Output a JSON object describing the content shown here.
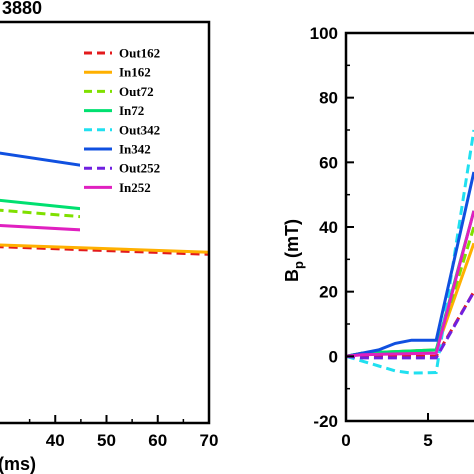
{
  "chart_data": [
    {
      "type": "line",
      "title": "3880",
      "xlabel": "(ms)",
      "ylabel": "",
      "xlim": [
        20,
        70
      ],
      "xticks": [
        "40",
        "50",
        "60",
        "70"
      ],
      "grid": false,
      "legend_position": "top-right",
      "series": [
        {
          "name": "Out162",
          "color": "#e31a1c",
          "dash": true,
          "x": [
            20,
            70
          ],
          "y": [
            0.0,
            -1.7
          ]
        },
        {
          "name": "In162",
          "color": "#ffb000",
          "dash": false,
          "x": [
            20,
            70
          ],
          "y": [
            0.3,
            -1.3
          ]
        },
        {
          "name": "Out72",
          "color": "#7fe000",
          "dash": true,
          "x": [
            20,
            70
          ],
          "y": [
            7.0,
            3.3
          ]
        },
        {
          "name": "In72",
          "color": "#00e070",
          "dash": false,
          "x": [
            20,
            70
          ],
          "y": [
            9.0,
            4.2
          ]
        },
        {
          "name": "Out342",
          "color": "#20e0f0",
          "dash": true,
          "x": [
            20,
            70
          ],
          "y": [
            null,
            null
          ]
        },
        {
          "name": "In342",
          "color": "#1050e0",
          "dash": false,
          "x": [
            20,
            70
          ],
          "y": [
            18.0,
            11.0
          ]
        },
        {
          "name": "Out252",
          "color": "#7020e0",
          "dash": true,
          "x": [
            20,
            70
          ],
          "y": [
            null,
            null
          ]
        },
        {
          "name": "In252",
          "color": "#e020c0",
          "dash": false,
          "x": [
            20,
            70
          ],
          "y": [
            4.0,
            1.5
          ]
        }
      ]
    },
    {
      "type": "line",
      "title": "",
      "xlabel": "",
      "ylabel": "B",
      "ylabel_sub": "p",
      "ylabel_unit": "(mT)",
      "xlim": [
        0,
        7.8
      ],
      "ylim": [
        -20,
        100
      ],
      "xticks": [
        "0",
        "5"
      ],
      "yticks": [
        "-20",
        "0",
        "20",
        "40",
        "60",
        "80",
        "100"
      ],
      "grid": false,
      "series": [
        {
          "name": "Out162",
          "color": "#e31a1c",
          "dash": true,
          "x": [
            0,
            1,
            5.5,
            7.8
          ],
          "y": [
            0,
            0,
            0,
            20
          ]
        },
        {
          "name": "In162",
          "color": "#ffb000",
          "dash": false,
          "x": [
            0,
            1,
            5.5,
            7.8
          ],
          "y": [
            0,
            1,
            2,
            35
          ]
        },
        {
          "name": "Out72",
          "color": "#7fe000",
          "dash": true,
          "x": [
            0,
            1,
            5.5,
            7.8
          ],
          "y": [
            0,
            1,
            2,
            40
          ]
        },
        {
          "name": "In72",
          "color": "#00e070",
          "dash": false,
          "x": [
            0,
            1,
            5.5,
            7.8
          ],
          "y": [
            0,
            1,
            2,
            45
          ]
        },
        {
          "name": "Out342",
          "color": "#20e0f0",
          "dash": true,
          "x": [
            0,
            2,
            3,
            4,
            5.5,
            7.8
          ],
          "y": [
            0,
            -3,
            -4.5,
            -5.2,
            -5,
            70
          ]
        },
        {
          "name": "In342",
          "color": "#1050e0",
          "dash": false,
          "x": [
            0,
            2,
            3,
            4,
            5.5,
            7.8
          ],
          "y": [
            0,
            2,
            4,
            5,
            5,
            57
          ]
        },
        {
          "name": "Out252",
          "color": "#7020e0",
          "dash": true,
          "x": [
            0,
            1,
            5.5,
            7.8
          ],
          "y": [
            0,
            -0.5,
            -0.5,
            20
          ]
        },
        {
          "name": "In252",
          "color": "#e020c0",
          "dash": false,
          "x": [
            0,
            1,
            5.5,
            7.8
          ],
          "y": [
            0,
            0.5,
            1,
            45
          ]
        }
      ]
    }
  ]
}
